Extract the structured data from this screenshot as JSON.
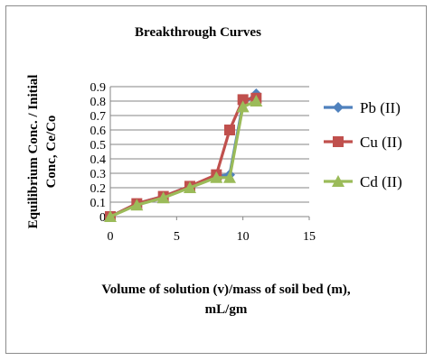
{
  "chart_data": {
    "type": "line",
    "title": "Breakthrough Curves",
    "xlabel_line1": "Volume of solution  (v)/mass of soil bed (m),",
    "xlabel_line2": "mL/gm",
    "ylabel_line1": "Equilibrium  Conc. / Initial",
    "ylabel_line2": "Conc, Ce/Co",
    "xlim": [
      0,
      15
    ],
    "ylim": [
      0,
      0.9
    ],
    "x_ticks": [
      0,
      5,
      10,
      15
    ],
    "x_tick_labels": [
      "0",
      "5",
      "10",
      "15"
    ],
    "y_ticks": [
      0,
      0.1,
      0.2,
      0.3,
      0.4,
      0.5,
      0.6,
      0.7,
      0.8,
      0.9
    ],
    "y_tick_labels": [
      "0",
      "0.1",
      "0.2",
      "0.3",
      "0.4",
      "0.5",
      "0.6",
      "0.7",
      "0.8",
      "0.9"
    ],
    "grid": true,
    "legend_position": "right",
    "series": [
      {
        "name": "Pb (II)",
        "color": "#4f81bd",
        "marker": "diamond",
        "x": [
          0,
          2,
          4,
          6,
          8,
          9,
          10,
          11
        ],
        "y": [
          0,
          0.09,
          0.14,
          0.21,
          0.28,
          0.29,
          0.78,
          0.85
        ]
      },
      {
        "name": "Cu (II)",
        "color": "#c0504d",
        "marker": "square",
        "x": [
          0,
          2,
          4,
          6,
          8,
          9,
          10,
          11
        ],
        "y": [
          0,
          0.09,
          0.14,
          0.21,
          0.29,
          0.6,
          0.81,
          0.82
        ]
      },
      {
        "name": "Cd (II)",
        "color": "#9bbb59",
        "marker": "triangle",
        "x": [
          0,
          2,
          4,
          6,
          8,
          9,
          10,
          11
        ],
        "y": [
          0,
          0.08,
          0.13,
          0.2,
          0.27,
          0.27,
          0.76,
          0.8
        ]
      }
    ]
  }
}
